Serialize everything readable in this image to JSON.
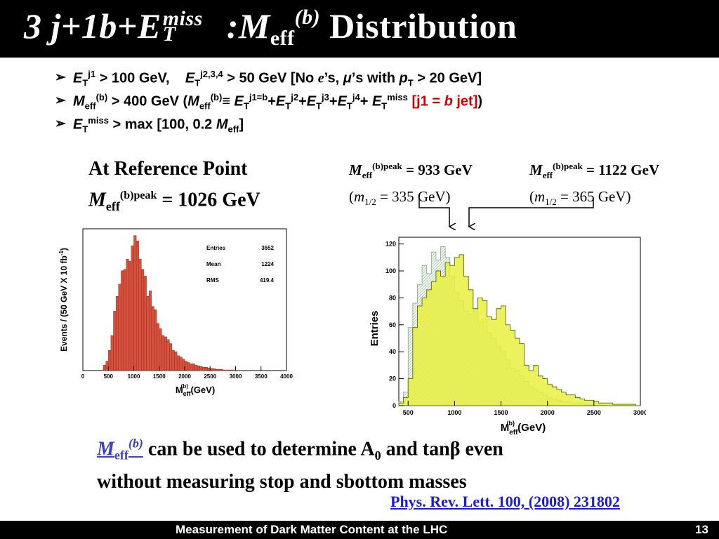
{
  "title": {
    "part1": "3",
    "part2": "j",
    "part3": "+1",
    "part4": "b",
    "part5": "+E",
    "sup1": "miss",
    "sub1": "T",
    "part6": " :M",
    "sub2": "eff",
    "sup2": "(b)",
    "part7": " Distribution"
  },
  "bullets": {
    "arrow": "➢",
    "b1": {
      "a": "E",
      "a_sub": "T",
      "a_sup": "j1",
      "b": " > 100 GeV,",
      "c": "E",
      "c_sub": "T",
      "c_sup": "j2,3,4",
      "d": " > 50 GeV [No ",
      "e": "e",
      "f": "’s, ",
      "g": "μ",
      "h": "’s with ",
      "i": "p",
      "i_sub": "T",
      "j": " > 20 GeV]"
    },
    "b2": {
      "a": "M",
      "a_sub": "eff",
      "a_sup": "(b)",
      "b": " > 400 GeV (",
      "c": "M",
      "c_sub": "eff",
      "c_sup": "(b)",
      "d": "≡ ",
      "e": "E",
      "e_sub": "T",
      "e_sup": "j1=b",
      "f": "+",
      "g": "E",
      "g_sub": "T",
      "g_sup": "j2",
      "h": "+",
      "i": "E",
      "i_sub": "T",
      "i_sup": "j3",
      "j": "+",
      "k": "E",
      "k_sub": "T",
      "k_sup": "j4",
      "l": "+ ",
      "m": "E",
      "m_sub": "T",
      "m_sup": "miss",
      "n": " [j1 = ",
      "o": "b",
      "p": " jet]",
      "q": ")"
    },
    "b3": {
      "a": "E",
      "a_sub": "T",
      "a_sup": "miss",
      "b": " > max [100, 0.2 ",
      "c": "M",
      "c_sub": "eff",
      "d": "]"
    }
  },
  "reference": {
    "line1": "At Reference Point",
    "m": "M",
    "sub": "eff",
    "sup": "(b)peak",
    "value": " = 1026 GeV"
  },
  "peaks": [
    {
      "m": "M",
      "sub": "eff",
      "sup": "(b)peak",
      "value": " = 933 GeV",
      "paren_open": "(",
      "mm": "m",
      "msub": "1/2",
      "mval": " = 335 GeV)"
    },
    {
      "m": "M",
      "sub": "eff",
      "sup": "(b)peak",
      "value": " = 1122 GeV",
      "paren_open": "(",
      "mm": "m",
      "msub": "1/2",
      "mval": " = 365 GeV)"
    }
  ],
  "note": {
    "m": "M",
    "sub": "eff",
    "sup": "(b)",
    "line1_rest": " can be used to determine A",
    "a_sub": "0",
    "line1_end": " and tanβ even",
    "line2": "without  measuring stop and sbottom masses"
  },
  "citation": "Phys. Rev. Lett. 100, (2008) 231802",
  "footer": {
    "text": "Measurement of Dark Matter Content at the LHC",
    "page": "13"
  },
  "chart_data": [
    {
      "type": "bar",
      "ylabel": "Events / (50 GeV X 10 fb",
      "ylabel_sup": "-1",
      "ylabel_end": ")",
      "xlabel": "M",
      "xlabel_sub": "eff",
      "xlabel_sup": "(b)",
      "xlabel_unit": " (GeV)",
      "xlim": [
        0,
        4000
      ],
      "xticks": [
        "0",
        "500",
        "1000",
        "1500",
        "2000",
        "2500",
        "3000",
        "3500",
        "4000"
      ],
      "ylim": [
        0,
        210
      ],
      "color": "#d9503c",
      "stats": [
        {
          "label": "Entries",
          "value": "3652"
        },
        {
          "label": "Mean",
          "value": "1224"
        },
        {
          "label": "RMS",
          "value": "419.4"
        }
      ],
      "bin_width": 50,
      "bin_start": 400,
      "values": [
        8,
        14,
        30,
        52,
        88,
        110,
        128,
        148,
        150,
        165,
        162,
        185,
        200,
        192,
        165,
        150,
        140,
        110,
        118,
        95,
        90,
        70,
        62,
        52,
        50,
        46,
        40,
        30,
        28,
        22,
        20,
        17,
        14,
        12,
        10,
        10,
        8,
        7,
        6,
        5,
        5,
        4,
        3,
        3,
        2,
        2,
        2,
        1,
        1,
        1,
        1,
        1
      ]
    },
    {
      "type": "bar",
      "ylabel": "Entries",
      "xlabel": "M",
      "xlabel_sub": "eff",
      "xlabel_sup": "(b)",
      "xlabel_unit": " (GeV)",
      "xlim": [
        400,
        3000
      ],
      "xticks": [
        "500",
        "1000",
        "1500",
        "2000",
        "2500",
        "3000"
      ],
      "yticks": [
        "0",
        "20",
        "40",
        "60",
        "80",
        "100",
        "120"
      ],
      "ylim": [
        0,
        125
      ],
      "bin_width": 50,
      "bin_start": 400,
      "series": [
        {
          "name": "",
          "color": "#e8f040",
          "values": [
            2,
            6,
            20,
            58,
            74,
            80,
            86,
            92,
            100,
            96,
            106,
            104,
            110,
            112,
            96,
            86,
            72,
            80,
            78,
            66,
            64,
            72,
            74,
            60,
            56,
            50,
            46,
            30,
            26,
            30,
            22,
            20,
            16,
            14,
            12,
            10,
            8,
            8,
            6,
            5,
            4,
            4,
            3,
            2,
            2,
            2,
            1,
            1,
            1,
            1,
            1,
            0
          ]
        },
        {
          "name": "",
          "color": "#d8ecd8",
          "values": [
            3,
            10,
            58,
            76,
            90,
            104,
            98,
            114,
            108,
            118,
            110,
            96,
            84,
            78,
            70,
            68,
            72,
            62,
            64,
            54,
            50,
            44,
            40,
            34,
            28,
            26,
            22,
            18,
            14,
            12,
            10,
            8,
            6,
            5,
            4,
            3,
            3,
            2,
            2,
            2,
            1,
            1,
            1,
            1,
            0,
            0,
            0,
            0,
            0,
            0,
            0,
            0
          ]
        }
      ]
    }
  ]
}
